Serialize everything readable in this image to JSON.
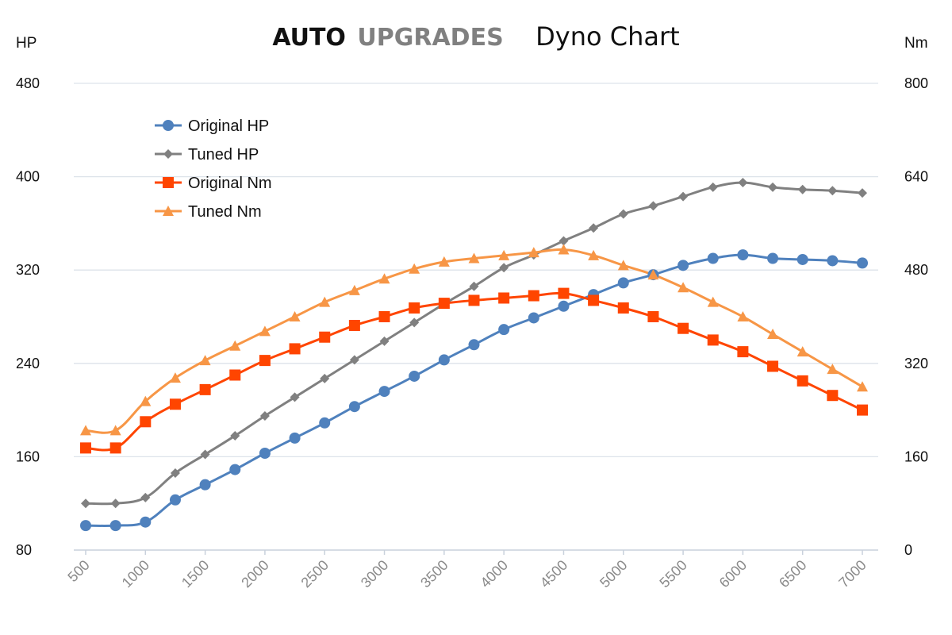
{
  "chart_data": {
    "type": "line",
    "title_brand_primary": "AUTO",
    "title_brand_secondary": "UPGRADES",
    "title": "Dyno Chart",
    "left_axis_unit": "HP",
    "right_axis_unit": "Nm",
    "left_ylim": [
      80,
      480
    ],
    "left_ticks": [
      80,
      160,
      240,
      320,
      400,
      480
    ],
    "right_ylim": [
      0,
      800
    ],
    "right_ticks": [
      0,
      160,
      320,
      480,
      640,
      800
    ],
    "x": [
      500,
      750,
      1000,
      1250,
      1500,
      1750,
      2000,
      2250,
      2500,
      2750,
      3000,
      3250,
      3500,
      3750,
      4000,
      4250,
      4500,
      4750,
      5000,
      5250,
      5500,
      5750,
      6000,
      6250,
      6500,
      6750,
      7000
    ],
    "x_ticks": [
      500,
      1000,
      1500,
      2000,
      2500,
      3000,
      3500,
      4000,
      4500,
      5000,
      5500,
      6000,
      6500,
      7000
    ],
    "grid": true,
    "legend_position": "top-left",
    "series": [
      {
        "name": "Original HP",
        "axis": "left",
        "color": "#4f81bd",
        "marker": "circle",
        "values": [
          101,
          101,
          104,
          123,
          136,
          149,
          163,
          176,
          189,
          203,
          216,
          229,
          243,
          256,
          269,
          279,
          289,
          299,
          309,
          316,
          324,
          330,
          333,
          330,
          329,
          328,
          326
        ]
      },
      {
        "name": "Tuned HP",
        "axis": "left",
        "color": "#808080",
        "marker": "diamond",
        "values": [
          120,
          120,
          125,
          146,
          162,
          178,
          195,
          211,
          227,
          243,
          259,
          275,
          291,
          306,
          322,
          333,
          345,
          356,
          368,
          375,
          383,
          391,
          395,
          391,
          389,
          388,
          386
        ]
      },
      {
        "name": "Original Nm",
        "axis": "right",
        "color": "#ff4500",
        "marker": "square",
        "values": [
          175,
          175,
          220,
          250,
          275,
          300,
          325,
          345,
          365,
          385,
          400,
          415,
          423,
          428,
          432,
          436,
          440,
          428,
          415,
          400,
          380,
          360,
          340,
          315,
          290,
          265,
          240
        ]
      },
      {
        "name": "Tuned Nm",
        "axis": "right",
        "color": "#f79646",
        "marker": "triangle",
        "values": [
          205,
          205,
          255,
          295,
          325,
          350,
          375,
          400,
          425,
          445,
          465,
          482,
          494,
          500,
          505,
          510,
          515,
          505,
          488,
          472,
          450,
          425,
          400,
          370,
          340,
          310,
          280
        ]
      }
    ]
  }
}
